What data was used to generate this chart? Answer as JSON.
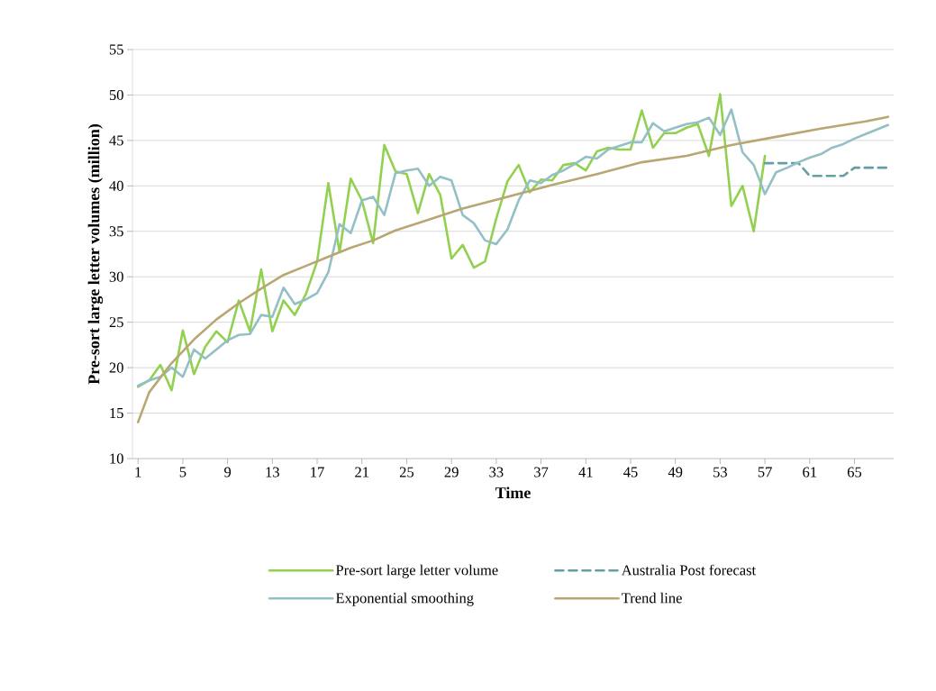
{
  "chart_data": {
    "type": "line",
    "xlabel": "Time",
    "ylabel": "Pre-sort large letter volumes (million)",
    "xlim": [
      0.5,
      68.5
    ],
    "ylim": [
      10,
      55
    ],
    "xticks": [
      1,
      5,
      9,
      13,
      17,
      21,
      25,
      29,
      33,
      37,
      41,
      45,
      49,
      53,
      57,
      61,
      65
    ],
    "yticks": [
      10,
      15,
      20,
      25,
      30,
      35,
      40,
      45,
      50,
      55
    ],
    "grid": "y",
    "legend": "bottom",
    "series": [
      {
        "name": "Pre-sort large letter volume",
        "color": "#92d050",
        "x": [
          1,
          2,
          3,
          4,
          5,
          6,
          7,
          8,
          9,
          10,
          11,
          12,
          13,
          14,
          15,
          16,
          17,
          18,
          19,
          20,
          21,
          22,
          23,
          24,
          25,
          26,
          27,
          28,
          29,
          30,
          31,
          32,
          33,
          34,
          35,
          36,
          37,
          38,
          39,
          40,
          41,
          42,
          43,
          44,
          45,
          46,
          47,
          48,
          49,
          50,
          51,
          52,
          53,
          54,
          55,
          56,
          57
        ],
        "values": [
          17.9,
          18.6,
          20.3,
          17.5,
          24.1,
          19.3,
          22.3,
          24.0,
          22.8,
          27.4,
          24.0,
          30.8,
          24.0,
          27.4,
          25.8,
          28.1,
          31.7,
          40.3,
          32.7,
          40.8,
          38.4,
          33.7,
          44.5,
          41.6,
          41.3,
          37.0,
          41.3,
          39.0,
          32.0,
          33.5,
          31.0,
          31.7,
          36.4,
          40.5,
          42.3,
          39.3,
          40.7,
          40.6,
          42.3,
          42.5,
          41.7,
          43.8,
          44.2,
          44.0,
          44.0,
          48.3,
          44.2,
          45.8,
          45.8,
          46.4,
          46.8,
          43.3,
          50.1,
          37.8,
          40.0,
          35.0,
          43.3
        ]
      },
      {
        "name": "Australia Post forecast",
        "color": "#62a0a4",
        "line_style": "dashed",
        "x": [
          57,
          58,
          59,
          60,
          61,
          62,
          63,
          64,
          65,
          66,
          67,
          68
        ],
        "values": [
          42.5,
          42.5,
          42.5,
          42.5,
          41.1,
          41.1,
          41.1,
          41.1,
          42.0,
          42.0,
          42.0,
          42.0
        ]
      },
      {
        "name": "Exponential smoothing",
        "color": "#93c0c5",
        "x": [
          1,
          2,
          3,
          4,
          5,
          6,
          7,
          8,
          9,
          10,
          11,
          12,
          13,
          14,
          15,
          16,
          17,
          18,
          19,
          20,
          21,
          22,
          23,
          24,
          25,
          26,
          27,
          28,
          29,
          30,
          31,
          32,
          33,
          34,
          35,
          36,
          37,
          38,
          39,
          40,
          41,
          42,
          43,
          44,
          45,
          46,
          47,
          48,
          49,
          50,
          51,
          52,
          53,
          54,
          55,
          56,
          57,
          58,
          59,
          60,
          61,
          62,
          63,
          64,
          65,
          66,
          67,
          68
        ],
        "values": [
          18.0,
          18.6,
          19.0,
          20.0,
          19.0,
          22.0,
          21.0,
          22.0,
          23.0,
          23.6,
          23.7,
          25.8,
          25.6,
          28.8,
          27.0,
          27.5,
          28.2,
          30.5,
          35.8,
          34.8,
          38.4,
          38.8,
          36.8,
          41.4,
          41.7,
          41.9,
          40.0,
          41.0,
          40.6,
          36.8,
          35.9,
          34.0,
          33.6,
          35.2,
          38.4,
          40.6,
          40.3,
          41.2,
          41.7,
          42.4,
          43.2,
          43.0,
          44.0,
          44.4,
          44.8,
          44.8,
          46.9,
          46.0,
          46.4,
          46.8,
          47.0,
          47.5,
          45.6,
          48.4,
          43.7,
          42.3,
          39.1,
          41.5,
          42.0,
          42.6,
          43.1,
          43.5,
          44.2,
          44.6,
          45.2,
          45.7,
          46.2,
          46.7
        ]
      },
      {
        "name": "Trend line",
        "color": "#b8a772",
        "x": [
          1,
          2,
          4,
          6,
          8,
          10,
          12,
          14,
          16,
          18,
          20,
          22,
          24,
          26,
          30,
          34,
          38,
          42,
          46,
          50,
          54,
          58,
          62,
          66,
          68
        ],
        "values": [
          14.0,
          17.3,
          20.5,
          23.1,
          25.3,
          27.1,
          28.7,
          30.2,
          31.2,
          32.2,
          33.2,
          34.0,
          35.1,
          35.9,
          37.5,
          38.8,
          40.1,
          41.3,
          42.6,
          43.3,
          44.5,
          45.4,
          46.3,
          47.1,
          47.6
        ]
      }
    ]
  }
}
